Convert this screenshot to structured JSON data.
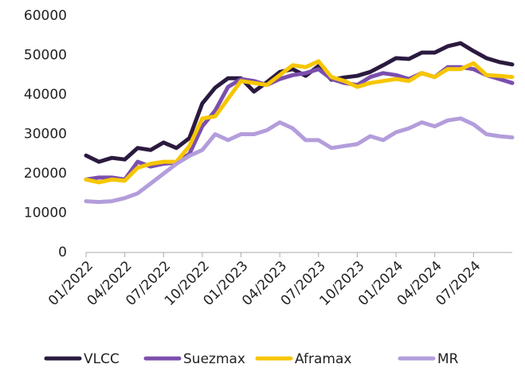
{
  "chart_data": {
    "type": "line",
    "categories": [
      "01/2022",
      null,
      null,
      "04/2022",
      null,
      null,
      "07/2022",
      null,
      null,
      "10/2022",
      null,
      null,
      "01/2023",
      null,
      null,
      "04/2023",
      null,
      null,
      "07/2023",
      null,
      null,
      "10/2023",
      null,
      null,
      "01/2024",
      null,
      null,
      "04/2024",
      null,
      null,
      "07/2024",
      null,
      null,
      null
    ],
    "series": [
      {
        "name": "VLCC",
        "color": "#2b1a3f",
        "values": [
          24600,
          23000,
          24000,
          23600,
          26500,
          26000,
          27900,
          26500,
          29000,
          37800,
          41800,
          44200,
          44200,
          40800,
          43200,
          45800,
          46500,
          44800,
          47300,
          43800,
          44400,
          44800,
          45800,
          47500,
          49300,
          49100,
          50700,
          50700,
          52300,
          53100,
          51100,
          49300,
          48300,
          47700
        ]
      },
      {
        "name": "Suezmax",
        "color": "#7b4fae",
        "values": [
          18500,
          19000,
          19000,
          18500,
          23000,
          21800,
          22500,
          22800,
          25000,
          32000,
          36000,
          42000,
          44000,
          43500,
          42500,
          44000,
          45000,
          45500,
          46500,
          44000,
          43000,
          42500,
          44500,
          45500,
          45000,
          44000,
          45500,
          44500,
          47000,
          47000,
          46500,
          45000,
          44000,
          43000
        ]
      },
      {
        "name": "Aframax",
        "color": "#f7c600",
        "values": [
          18500,
          17800,
          18500,
          18200,
          21500,
          22500,
          23000,
          23000,
          27000,
          34000,
          34500,
          39000,
          43500,
          43000,
          42500,
          45000,
          47500,
          47000,
          48500,
          44500,
          43500,
          42000,
          43000,
          43500,
          44000,
          43500,
          45500,
          44500,
          46500,
          46500,
          48000,
          45000,
          44800,
          44500
        ]
      },
      {
        "name": "MR",
        "color": "#b39ddb",
        "values": [
          13000,
          12800,
          13000,
          13800,
          15000,
          17500,
          20000,
          22500,
          24500,
          26000,
          30000,
          28500,
          30000,
          30000,
          31000,
          33000,
          31500,
          28500,
          28500,
          26500,
          27000,
          27500,
          29500,
          28500,
          30500,
          31500,
          33000,
          32000,
          33500,
          34000,
          32500,
          30000,
          29500,
          29200
        ]
      }
    ],
    "ylim": [
      0,
      60000
    ],
    "yticks": [
      0,
      10000,
      20000,
      30000,
      40000,
      50000,
      60000
    ],
    "grid": false,
    "legend": "bottom"
  }
}
